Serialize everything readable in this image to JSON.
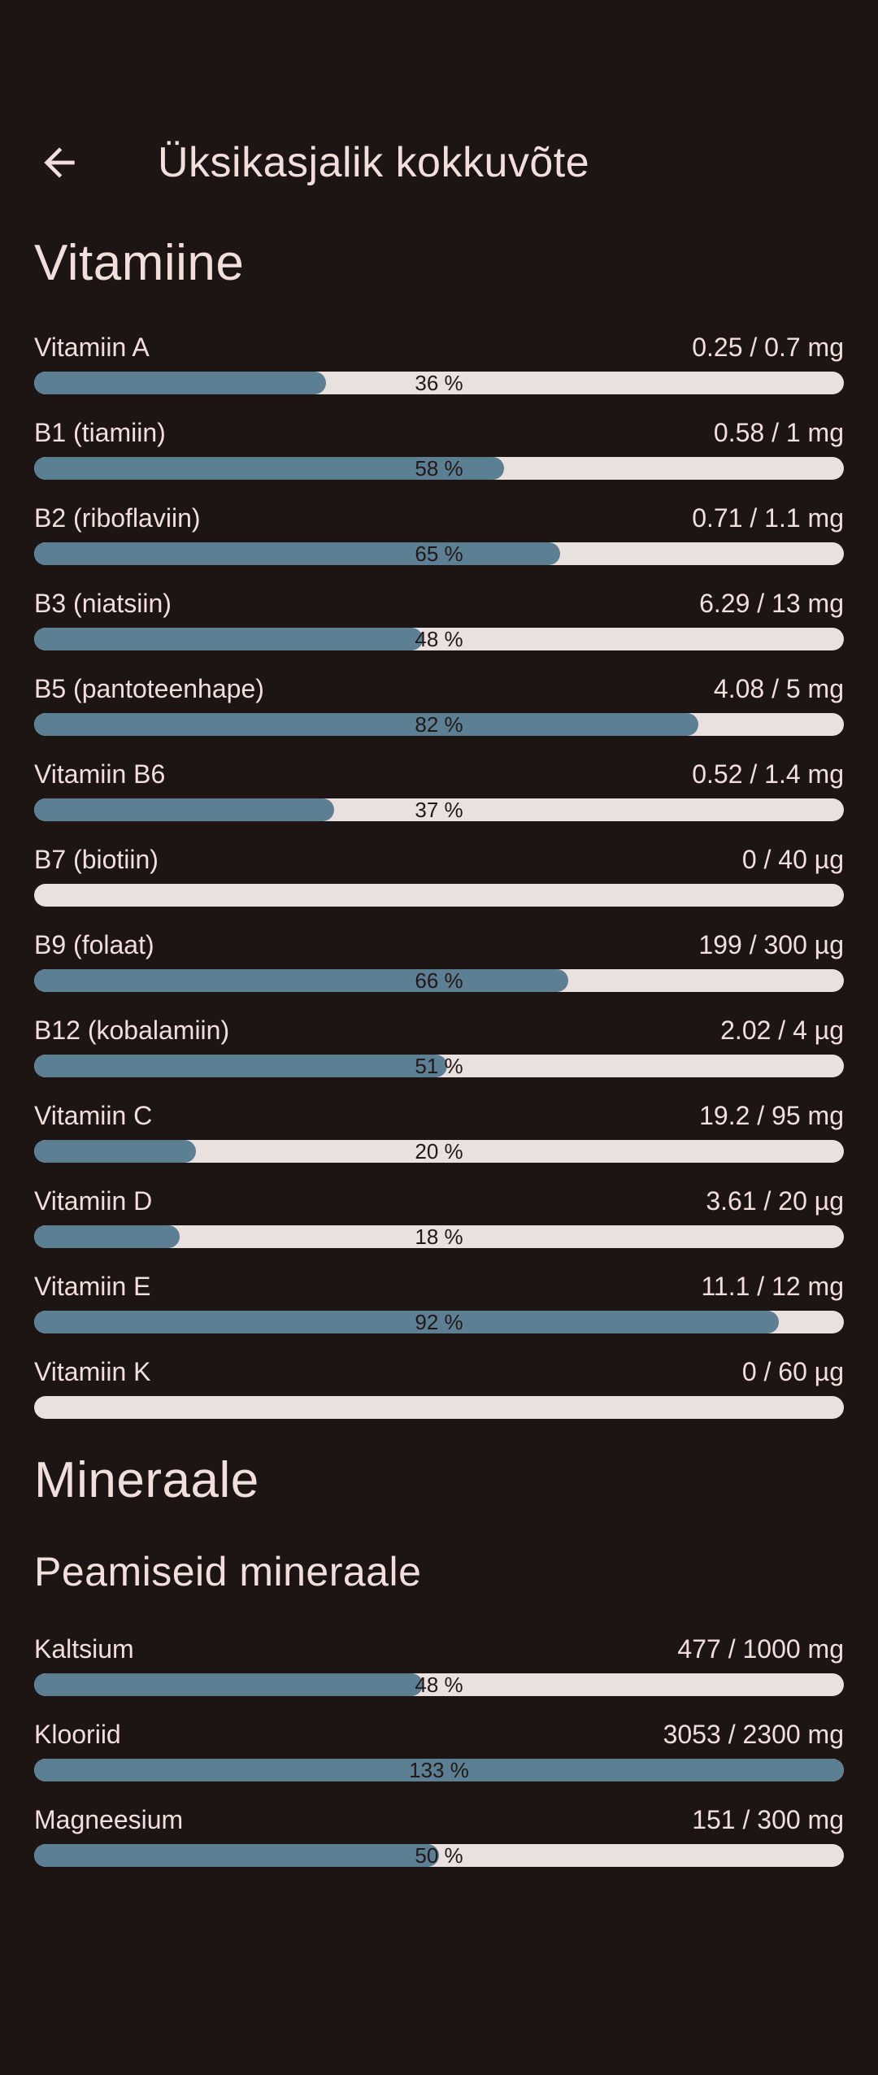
{
  "header": {
    "back_icon": "arrow-back",
    "title": "Üksikasjalik kokkuvõte"
  },
  "colors": {
    "bg": "#1d1414",
    "text": "#f2dfdc",
    "track": "#e8e1e0",
    "fill": "#5c7f93",
    "on-bar": "#221818"
  },
  "sections": [
    {
      "heading": "Vitamiine",
      "items": [
        {
          "label": "Vitamiin A",
          "value": "0.25 / 0.7 mg",
          "percent": 36,
          "percent_label": "36 %"
        },
        {
          "label": "B1 (tiamiin)",
          "value": "0.58 / 1 mg",
          "percent": 58,
          "percent_label": "58 %"
        },
        {
          "label": "B2 (riboflaviin)",
          "value": "0.71 / 1.1 mg",
          "percent": 65,
          "percent_label": "65 %"
        },
        {
          "label": "B3 (niatsiin)",
          "value": "6.29 / 13 mg",
          "percent": 48,
          "percent_label": "48 %"
        },
        {
          "label": "B5 (pantoteenhape)",
          "value": "4.08 / 5 mg",
          "percent": 82,
          "percent_label": "82 %"
        },
        {
          "label": "Vitamiin B6",
          "value": "0.52 / 1.4 mg",
          "percent": 37,
          "percent_label": "37 %"
        },
        {
          "label": "B7 (biotiin)",
          "value": "0 / 40 µg",
          "percent": 0,
          "percent_label": ""
        },
        {
          "label": "B9 (folaat)",
          "value": "199 / 300 µg",
          "percent": 66,
          "percent_label": "66 %"
        },
        {
          "label": "B12 (kobalamiin)",
          "value": "2.02 / 4 µg",
          "percent": 51,
          "percent_label": "51 %"
        },
        {
          "label": "Vitamiin C",
          "value": "19.2 / 95 mg",
          "percent": 20,
          "percent_label": "20 %"
        },
        {
          "label": "Vitamiin D",
          "value": "3.61 / 20 µg",
          "percent": 18,
          "percent_label": "18 %"
        },
        {
          "label": "Vitamiin E",
          "value": "11.1 / 12 mg",
          "percent": 92,
          "percent_label": "92 %"
        },
        {
          "label": "Vitamiin K",
          "value": "0 / 60 µg",
          "percent": 0,
          "percent_label": ""
        }
      ]
    },
    {
      "heading": "Mineraale",
      "subheading": "Peamiseid mineraale",
      "items": [
        {
          "label": "Kaltsium",
          "value": "477 / 1000 mg",
          "percent": 48,
          "percent_label": "48 %"
        },
        {
          "label": "Klooriid",
          "value": "3053 / 2300 mg",
          "percent": 133,
          "percent_label": "133 %"
        },
        {
          "label": "Magneesium",
          "value": "151 / 300 mg",
          "percent": 50,
          "percent_label": "50 %"
        }
      ]
    }
  ]
}
